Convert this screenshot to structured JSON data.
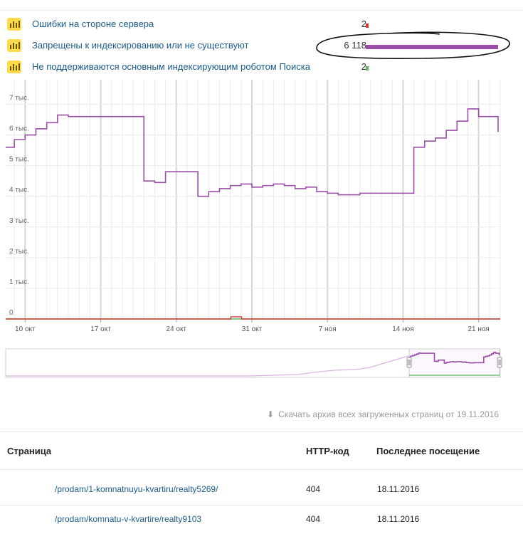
{
  "legend": [
    {
      "label": "Ошибки на стороне сервера",
      "count": "2",
      "color": "#d63a3a",
      "value": 2
    },
    {
      "label": "Запрещены к индексированию или не существуют",
      "count": "6 118",
      "color": "#9a4ea8",
      "value": 6118
    },
    {
      "label": "Не поддерживаются основным индексирующим роботом Поиска",
      "count": "2",
      "color": "#5cb85c",
      "value": 2
    }
  ],
  "chart_data": {
    "type": "line",
    "y_ticks": [
      "0",
      "1 тыс.",
      "2 тыс.",
      "3 тыс.",
      "4 тыс.",
      "5 тыс.",
      "6 тыс.",
      "7 тыс."
    ],
    "y_tick_values": [
      0,
      1000,
      2000,
      3000,
      4000,
      5000,
      6000,
      7000
    ],
    "ylim": [
      0,
      7800
    ],
    "x_ticks": [
      "10 окт",
      "17 окт",
      "24 окт",
      "31 окт",
      "7 ноя",
      "14 ноя",
      "21 ноя"
    ],
    "x_tick_days": [
      10,
      17,
      24,
      31,
      38,
      45,
      52
    ],
    "xlim": [
      8.2,
      54
    ],
    "grid": true,
    "series": [
      {
        "color": "#9a4ea8",
        "x": [
          8.2,
          9,
          10,
          11,
          12,
          13,
          14,
          15,
          16,
          17,
          18,
          19,
          20,
          21,
          22,
          23,
          24,
          25,
          26,
          27,
          28,
          29,
          30,
          31,
          32,
          33,
          34,
          35,
          36,
          37,
          38,
          39,
          40,
          41,
          42,
          43,
          44,
          45,
          46,
          47,
          48,
          49,
          50,
          51,
          52,
          53,
          53.8
        ],
        "y": [
          5600,
          5850,
          6000,
          6200,
          6400,
          6650,
          6600,
          6600,
          6600,
          6600,
          6600,
          6600,
          6600,
          4500,
          4450,
          4800,
          4800,
          4800,
          4000,
          4150,
          4250,
          4350,
          4400,
          4300,
          4350,
          4400,
          4350,
          4250,
          4300,
          4150,
          4100,
          4050,
          4050,
          4100,
          4100,
          4100,
          4100,
          4100,
          5600,
          5800,
          5900,
          6150,
          6450,
          6850,
          6600,
          6600,
          6100
        ]
      },
      {
        "color": "#d63a3a",
        "x": [
          8.2,
          29,
          29.05,
          30,
          30.05,
          54
        ],
        "y": [
          0,
          0,
          70,
          70,
          0,
          0
        ]
      },
      {
        "color": "#5cb85c",
        "x": [
          8.2,
          54
        ],
        "y": [
          0,
          0
        ]
      }
    ]
  },
  "download": {
    "text": "Скачать архив всех загруженных страниц от 19.11.2016"
  },
  "table": {
    "headers": [
      "Страница",
      "HTTP-код",
      "Последнее посещение"
    ],
    "rows": [
      {
        "page": "/prodam/1-komnatnuyu-kvartiru/realty5269/",
        "code": "404",
        "date": "18.11.2016"
      },
      {
        "page": "/prodam/komnatu-v-kvartire/realty9103",
        "code": "404",
        "date": "18.11.2016"
      }
    ]
  }
}
